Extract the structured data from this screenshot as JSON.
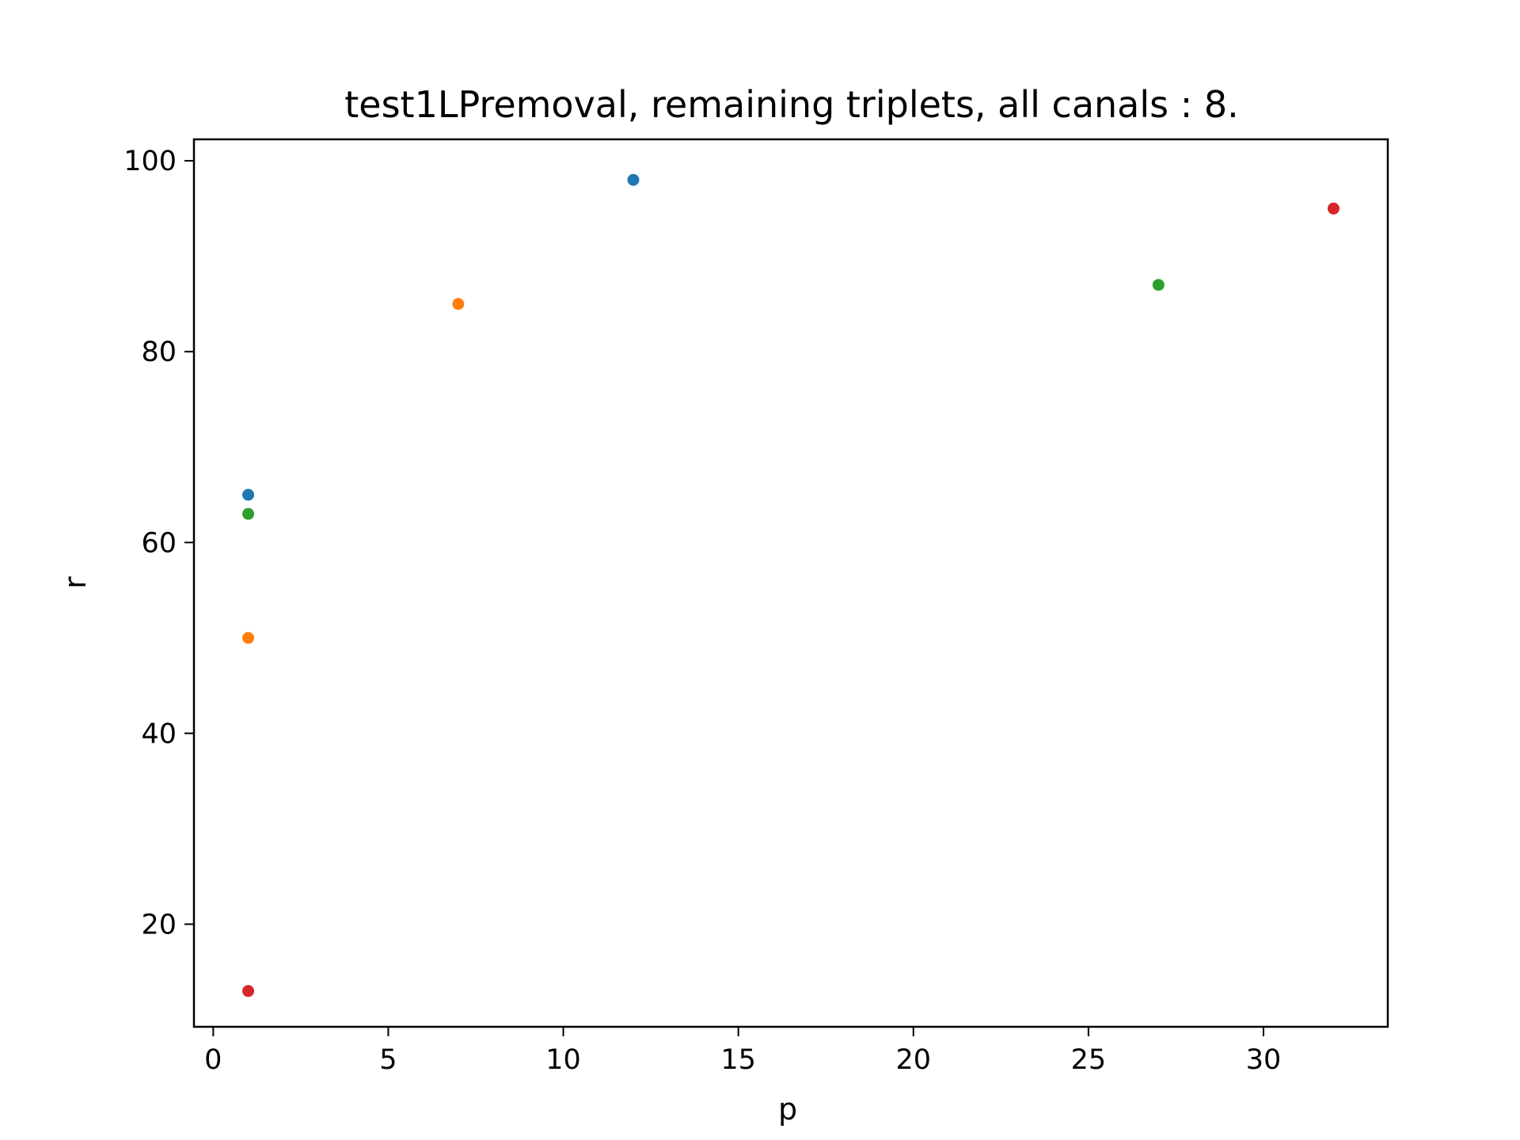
{
  "chart_data": {
    "type": "scatter",
    "title": "test1LPremoval, remaining triplets, all canals : 8.",
    "xlabel": "p",
    "ylabel": "r",
    "xlim": [
      -0.55,
      33.55
    ],
    "ylim": [
      9.25,
      102.25
    ],
    "xticks": [
      0,
      5,
      10,
      15,
      20,
      25,
      30
    ],
    "yticks": [
      20,
      40,
      60,
      80,
      100
    ],
    "grid": false,
    "legend": "none",
    "points": [
      {
        "x": 1,
        "y": 65,
        "color": "#1f77b4"
      },
      {
        "x": 12,
        "y": 98,
        "color": "#1f77b4"
      },
      {
        "x": 1,
        "y": 50,
        "color": "#ff7f0e"
      },
      {
        "x": 7,
        "y": 85,
        "color": "#ff7f0e"
      },
      {
        "x": 1,
        "y": 63,
        "color": "#2ca02c"
      },
      {
        "x": 27,
        "y": 87,
        "color": "#2ca02c"
      },
      {
        "x": 1,
        "y": 13,
        "color": "#d62728"
      },
      {
        "x": 32,
        "y": 95,
        "color": "#d62728"
      }
    ]
  }
}
